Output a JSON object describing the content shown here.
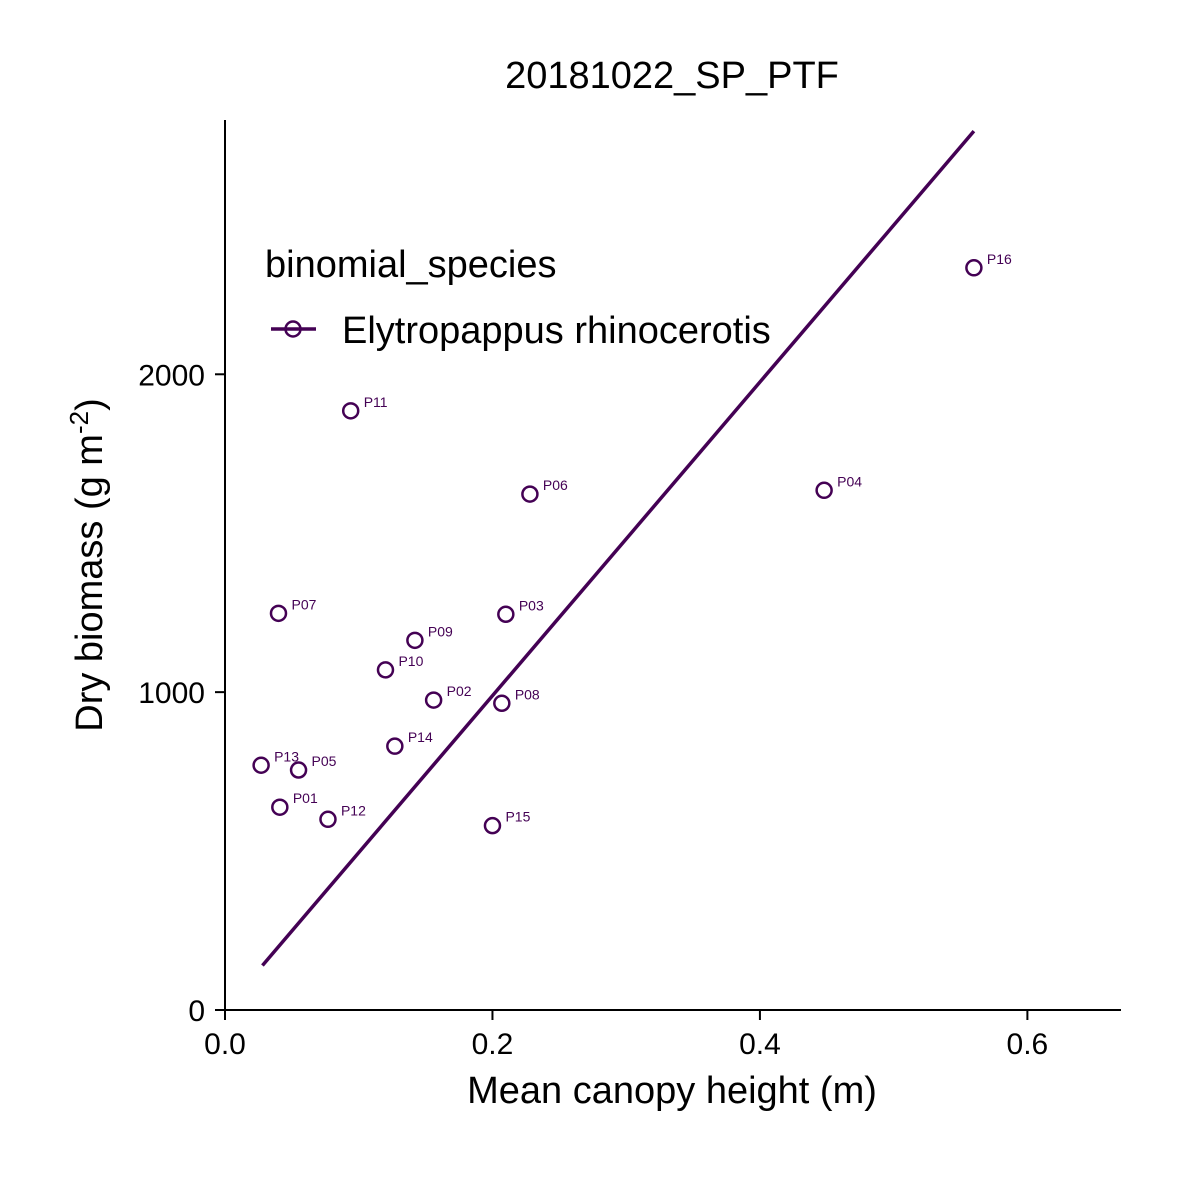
{
  "chart_data": {
    "type": "scatter",
    "title": "20181022_SP_PTF",
    "xlabel": "Mean canopy height (m)",
    "ylabel": "Dry biomass (g m",
    "ylabel_superscript": "-2",
    "ylabel_suffix": ")",
    "xlim": [
      0,
      0.67
    ],
    "ylim": [
      0,
      2800
    ],
    "x_ticks": [
      0.0,
      0.2,
      0.4,
      0.6
    ],
    "x_tick_labels": [
      "0.0",
      "0.2",
      "0.4",
      "0.6"
    ],
    "y_ticks": [
      0,
      1000,
      2000
    ],
    "y_tick_labels": [
      "0",
      "1000",
      "2000"
    ],
    "legend": {
      "title": "binomial_species",
      "position": "top-left",
      "entries": [
        "Elytropappus rhinocerotis"
      ]
    },
    "color": "#440154",
    "series": [
      {
        "name": "Elytropappus rhinocerotis",
        "points": [
          {
            "label": "P01",
            "x": 0.041,
            "y": 638
          },
          {
            "label": "P02",
            "x": 0.156,
            "y": 975
          },
          {
            "label": "P03",
            "x": 0.21,
            "y": 1245
          },
          {
            "label": "P04",
            "x": 0.448,
            "y": 1635
          },
          {
            "label": "P05",
            "x": 0.055,
            "y": 755
          },
          {
            "label": "P06",
            "x": 0.228,
            "y": 1623
          },
          {
            "label": "P07",
            "x": 0.04,
            "y": 1248
          },
          {
            "label": "P08",
            "x": 0.207,
            "y": 965
          },
          {
            "label": "P09",
            "x": 0.142,
            "y": 1163
          },
          {
            "label": "P10",
            "x": 0.12,
            "y": 1070
          },
          {
            "label": "P11",
            "x": 0.094,
            "y": 1885
          },
          {
            "label": "P12",
            "x": 0.077,
            "y": 600
          },
          {
            "label": "P13",
            "x": 0.027,
            "y": 770
          },
          {
            "label": "P14",
            "x": 0.127,
            "y": 830
          },
          {
            "label": "P15",
            "x": 0.2,
            "y": 580
          },
          {
            "label": "P16",
            "x": 0.56,
            "y": 2335
          }
        ]
      }
    ],
    "fit_line": {
      "x": [
        0.028,
        0.56
      ],
      "y": [
        140,
        2765
      ]
    }
  }
}
